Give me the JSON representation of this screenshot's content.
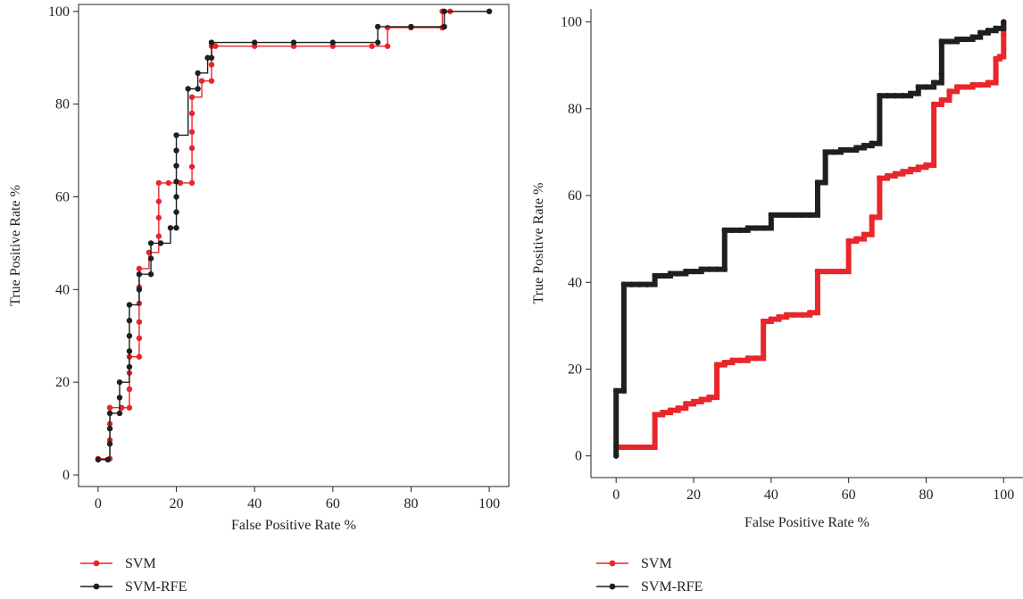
{
  "chart_data": [
    {
      "type": "line",
      "step": true,
      "xlabel": "False Positive Rate %",
      "ylabel": "True Positive Rate %",
      "xlim": [
        -5,
        105
      ],
      "ylim": [
        -2.5,
        101.5
      ],
      "xticks": [
        "0",
        "20",
        "40",
        "60",
        "80",
        "100"
      ],
      "yticks": [
        "0",
        "20",
        "40",
        "60",
        "80",
        "100"
      ],
      "grid": false,
      "legend_position": "bottom-left",
      "series": [
        {
          "name": "SVM",
          "color": "#e8262b",
          "x": [
            0,
            3.0,
            3.0,
            3.0,
            3.0,
            3.0,
            6.0,
            6.0,
            8.0,
            8.0,
            8.0,
            8.0,
            10.5,
            10.5,
            10.5,
            10.5,
            10.5,
            10.5,
            13.0,
            15.5,
            15.5,
            15.5,
            15.5,
            18.0,
            21.0,
            21.0,
            24.0,
            24.0,
            24.0,
            24.0,
            24.0,
            24.0,
            26.5,
            29.0,
            29.0,
            29.0,
            30.0,
            40.0,
            50.0,
            60.0,
            70.0,
            74.0,
            74.0,
            80.0,
            88.0,
            88.0,
            90.0,
            100.0
          ],
          "y": [
            3.5,
            3.5,
            7.5,
            11.0,
            14.5,
            14.5,
            14.5,
            14.5,
            14.5,
            18.5,
            22.0,
            25.5,
            25.5,
            29.5,
            33.0,
            37.0,
            40.5,
            44.5,
            48.0,
            51.5,
            55.5,
            59.0,
            63.0,
            63.0,
            63.0,
            63.0,
            63.0,
            66.5,
            70.5,
            74.0,
            78.0,
            81.5,
            85.0,
            85.0,
            88.5,
            92.5,
            92.5,
            92.5,
            92.5,
            92.5,
            92.5,
            92.5,
            96.5,
            96.5,
            96.5,
            100,
            100,
            100
          ]
        },
        {
          "name": "SVM-RFE",
          "color": "#1f1f1f",
          "x": [
            0,
            2.5,
            3.0,
            3.0,
            3.0,
            5.5,
            5.5,
            5.5,
            8.0,
            8.0,
            8.0,
            8.0,
            8.0,
            10.5,
            10.5,
            13.5,
            13.5,
            13.5,
            16.0,
            18.5,
            20.0,
            20.0,
            20.0,
            20.0,
            20.0,
            20.0,
            20.0,
            23.0,
            25.5,
            25.5,
            28.0,
            29.0,
            29.0,
            40.0,
            50.0,
            60.0,
            71.5,
            71.5,
            80.0,
            88.5,
            88.5,
            100.0
          ],
          "y": [
            3.3,
            3.3,
            6.7,
            10.0,
            13.3,
            13.3,
            16.7,
            20.0,
            23.3,
            26.7,
            30.0,
            33.3,
            36.7,
            40.0,
            43.3,
            43.3,
            46.7,
            50.0,
            50.0,
            53.3,
            53.3,
            56.7,
            60.0,
            63.3,
            66.7,
            70.0,
            73.3,
            83.3,
            83.3,
            86.7,
            90.0,
            90.0,
            93.3,
            93.3,
            93.3,
            93.3,
            93.3,
            96.7,
            96.7,
            96.7,
            100,
            100
          ]
        }
      ]
    },
    {
      "type": "line",
      "step": true,
      "xlabel": "False Positive Rate %",
      "ylabel": "True Positive Rate %",
      "xlim": [
        -6.5,
        105
      ],
      "ylim": [
        -5,
        103
      ],
      "xticks": [
        "0",
        "20",
        "40",
        "60",
        "80",
        "100"
      ],
      "yticks": [
        "0",
        "20",
        "40",
        "60",
        "80",
        "100"
      ],
      "grid": false,
      "legend_position": "bottom-left",
      "series": [
        {
          "name": "SVM",
          "color": "#e8262b",
          "x": [
            0,
            2,
            4,
            6,
            8,
            10,
            12,
            14,
            16,
            18,
            20,
            22,
            24,
            26,
            26,
            28,
            30,
            32,
            34,
            36,
            38,
            38,
            40,
            42,
            44,
            46,
            48,
            50,
            52,
            52,
            54,
            56,
            58,
            60,
            62,
            64,
            66,
            68,
            68,
            70,
            72,
            74,
            76,
            78,
            80,
            82,
            82,
            84,
            86,
            88,
            90,
            92,
            94,
            96,
            98,
            99,
            100,
            100
          ],
          "y": [
            2,
            2,
            2,
            2,
            2,
            9.5,
            10,
            10.5,
            11,
            12,
            12.5,
            13,
            13.5,
            14,
            21,
            21.5,
            22,
            22,
            22.5,
            22.5,
            23,
            31,
            31.5,
            32,
            32.5,
            32.5,
            32.5,
            33,
            42.5,
            42.5,
            42.5,
            42.5,
            42.5,
            49.5,
            50,
            51,
            55,
            64,
            64,
            64.5,
            65,
            65.5,
            66,
            66.5,
            67,
            81,
            81,
            82,
            84,
            85,
            85,
            85.5,
            85.5,
            86,
            91.5,
            92,
            97,
            100
          ]
        },
        {
          "name": "SVM-RFE",
          "color": "#1f1f1f",
          "x": [
            0,
            0,
            2,
            2,
            4,
            6,
            8,
            10,
            12,
            14,
            16,
            18,
            20,
            22,
            24,
            26,
            28,
            28,
            30,
            32,
            34,
            36,
            38,
            40,
            42,
            44,
            46,
            48,
            50,
            52,
            52,
            54,
            56,
            58,
            60,
            62,
            64,
            66,
            68,
            68,
            70,
            72,
            74,
            76,
            78,
            80,
            82,
            84,
            84,
            86,
            88,
            90,
            92,
            94,
            96,
            98,
            100
          ],
          "y": [
            0,
            15,
            15,
            39.5,
            39.5,
            39.5,
            39.5,
            41.5,
            41.5,
            42,
            42,
            42.5,
            42.5,
            43,
            43,
            43,
            43,
            52,
            52,
            52,
            52.5,
            52.5,
            52.5,
            55.5,
            55.5,
            55.5,
            55.5,
            55.5,
            55.5,
            56,
            63,
            70,
            70,
            70.5,
            70.5,
            71,
            71.5,
            72,
            73,
            83,
            83,
            83,
            83,
            83.5,
            85,
            85,
            86,
            88,
            95.5,
            95.5,
            96,
            96,
            96.5,
            97.5,
            98,
            98.5,
            100
          ]
        }
      ]
    }
  ]
}
